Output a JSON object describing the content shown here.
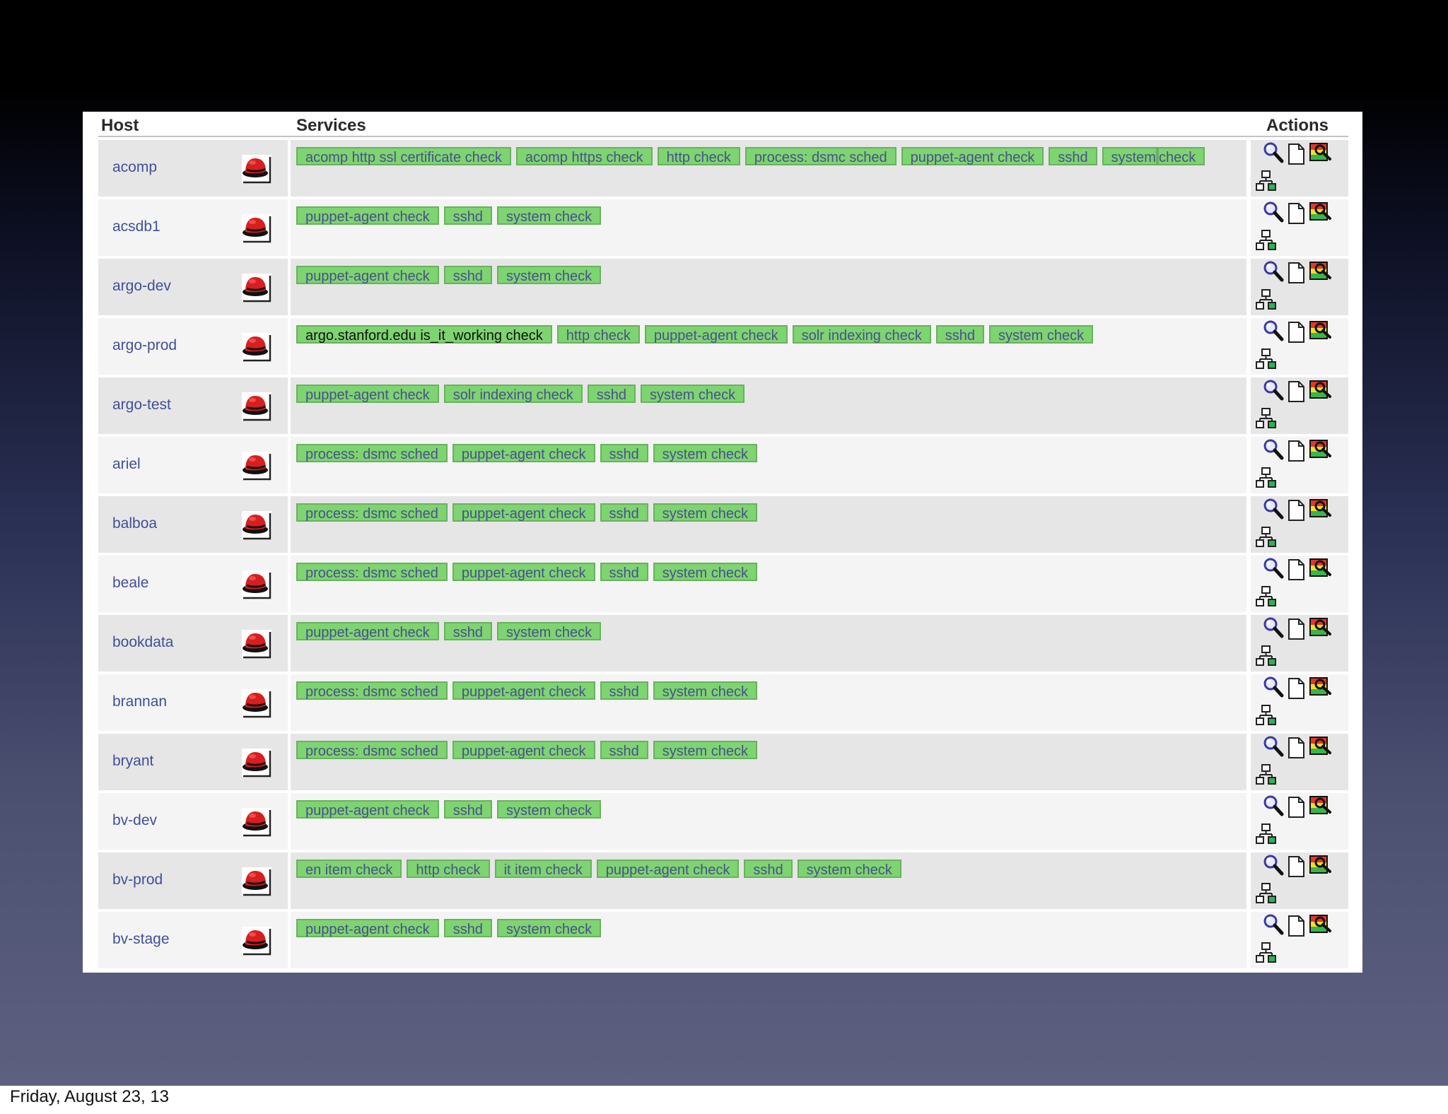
{
  "table": {
    "headers": {
      "host": "Host",
      "services": "Services",
      "actions": "Actions"
    },
    "os_icon": "redhat-icon",
    "action_icons": [
      "magnifier-search-icon",
      "document-icon",
      "notification-graph-icon",
      "network-map-icon"
    ],
    "colors": {
      "service_ok": "#7ed470",
      "service_border": "#68b25e",
      "link": "#404f99"
    },
    "rows": [
      {
        "host": "acomp",
        "services": [
          "acomp http ssl certificate check",
          "acomp https check",
          "http check",
          "process: dsmc sched",
          "puppet-agent check",
          "sshd",
          "system check"
        ]
      },
      {
        "host": "acsdb1",
        "services": [
          "puppet-agent check",
          "sshd",
          "system check"
        ]
      },
      {
        "host": "argo-dev",
        "services": [
          "puppet-agent check",
          "sshd",
          "system check"
        ]
      },
      {
        "host": "argo-prod",
        "services": [
          "argo.stanford.edu is_it_working check",
          "http check",
          "puppet-agent check",
          "solr indexing check",
          "sshd",
          "system check"
        ]
      },
      {
        "host": "argo-test",
        "services": [
          "puppet-agent check",
          "solr indexing check",
          "sshd",
          "system check"
        ]
      },
      {
        "host": "ariel",
        "services": [
          "process: dsmc sched",
          "puppet-agent check",
          "sshd",
          "system check"
        ]
      },
      {
        "host": "balboa",
        "services": [
          "process: dsmc sched",
          "puppet-agent check",
          "sshd",
          "system check"
        ]
      },
      {
        "host": "beale",
        "services": [
          "process: dsmc sched",
          "puppet-agent check",
          "sshd",
          "system check"
        ]
      },
      {
        "host": "bookdata",
        "services": [
          "puppet-agent check",
          "sshd",
          "system check"
        ]
      },
      {
        "host": "brannan",
        "services": [
          "process: dsmc sched",
          "puppet-agent check",
          "sshd",
          "system check"
        ]
      },
      {
        "host": "bryant",
        "services": [
          "process: dsmc sched",
          "puppet-agent check",
          "sshd",
          "system check"
        ]
      },
      {
        "host": "bv-dev",
        "services": [
          "puppet-agent check",
          "sshd",
          "system check"
        ]
      },
      {
        "host": "bv-prod",
        "services": [
          "en item check",
          "http check",
          "it item check",
          "puppet-agent check",
          "sshd",
          "system check"
        ]
      },
      {
        "host": "bv-stage",
        "services": [
          "puppet-agent check",
          "sshd",
          "system check"
        ]
      }
    ]
  },
  "footer": {
    "date": "Friday, August 23, 13"
  }
}
